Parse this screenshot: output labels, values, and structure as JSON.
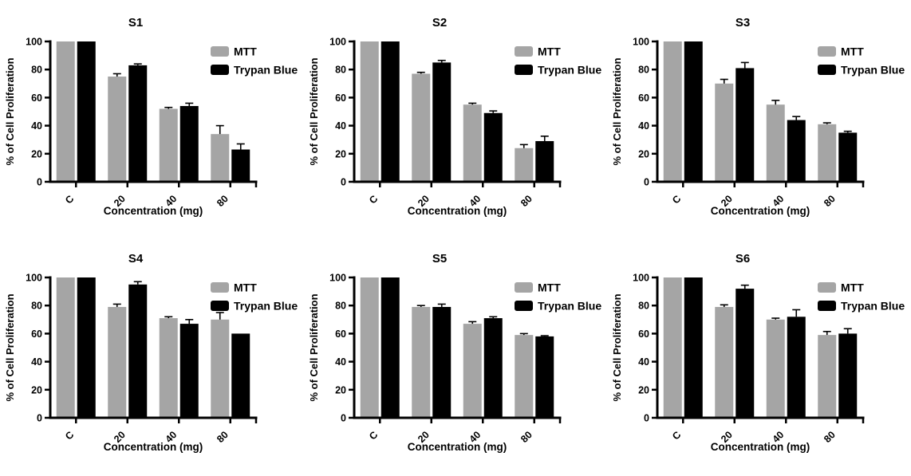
{
  "figure": {
    "background": "#FFFFFF",
    "layout": "2x3-grid"
  },
  "style": {
    "axis_color": "#000000",
    "error_bar_color": "#000000",
    "series_colors": {
      "MTT": "#A5A5A5",
      "Trypan Blue": "#000000"
    }
  },
  "chart_data": [
    {
      "type": "bar",
      "title": "S1",
      "xlabel": "Concentration (mg)",
      "ylabel": "% of Cell Proliferation",
      "ylim": [
        0,
        100
      ],
      "yticks": [
        0,
        20,
        40,
        60,
        80,
        100
      ],
      "categories": [
        "C",
        "20",
        "40",
        "80"
      ],
      "grid": false,
      "legend_position": "top-right",
      "series": [
        {
          "name": "MTT",
          "color": "#A5A5A5",
          "values": [
            100,
            75,
            52,
            34
          ],
          "errors": [
            0,
            2,
            1,
            6
          ]
        },
        {
          "name": "Trypan Blue",
          "color": "#000000",
          "values": [
            100,
            83,
            54,
            23
          ],
          "errors": [
            0,
            1,
            2,
            4
          ]
        }
      ]
    },
    {
      "type": "bar",
      "title": "S2",
      "xlabel": "Concentration (mg)",
      "ylabel": "% of Cell Proliferation",
      "ylim": [
        0,
        100
      ],
      "yticks": [
        0,
        20,
        40,
        60,
        80,
        100
      ],
      "categories": [
        "C",
        "20",
        "40",
        "80"
      ],
      "grid": false,
      "legend_position": "top-right",
      "series": [
        {
          "name": "MTT",
          "color": "#A5A5A5",
          "values": [
            100,
            77,
            55,
            24
          ],
          "errors": [
            0,
            1,
            1,
            2.5
          ]
        },
        {
          "name": "Trypan Blue",
          "color": "#000000",
          "values": [
            100,
            85,
            49,
            29
          ],
          "errors": [
            0,
            1.5,
            1.5,
            3.5
          ]
        }
      ]
    },
    {
      "type": "bar",
      "title": "S3",
      "xlabel": "Concentration (mg)",
      "ylabel": "% of Cell Proliferation",
      "ylim": [
        0,
        100
      ],
      "yticks": [
        0,
        20,
        40,
        60,
        80,
        100
      ],
      "categories": [
        "C",
        "20",
        "40",
        "80"
      ],
      "grid": false,
      "legend_position": "top-right",
      "series": [
        {
          "name": "MTT",
          "color": "#A5A5A5",
          "values": [
            100,
            70,
            55,
            41
          ],
          "errors": [
            0,
            3,
            3,
            1
          ]
        },
        {
          "name": "Trypan Blue",
          "color": "#000000",
          "values": [
            100,
            81,
            44,
            35
          ],
          "errors": [
            0,
            4,
            2.5,
            1
          ]
        }
      ]
    },
    {
      "type": "bar",
      "title": "S4",
      "xlabel": "Concentration (mg)",
      "ylabel": "% of Cell Proliferation",
      "ylim": [
        0,
        100
      ],
      "yticks": [
        0,
        20,
        40,
        60,
        80,
        100
      ],
      "categories": [
        "C",
        "20",
        "40",
        "80"
      ],
      "grid": false,
      "legend_position": "top-right",
      "series": [
        {
          "name": "MTT",
          "color": "#A5A5A5",
          "values": [
            100,
            79,
            71,
            70
          ],
          "errors": [
            0,
            2,
            1,
            5
          ]
        },
        {
          "name": "Trypan Blue",
          "color": "#000000",
          "values": [
            100,
            95,
            67,
            60
          ],
          "errors": [
            0,
            2,
            3,
            0
          ]
        }
      ]
    },
    {
      "type": "bar",
      "title": "S5",
      "xlabel": "Concentration (mg)",
      "ylabel": "% of Cell Proliferation",
      "ylim": [
        0,
        100
      ],
      "yticks": [
        0,
        20,
        40,
        60,
        80,
        100
      ],
      "categories": [
        "C",
        "20",
        "40",
        "80"
      ],
      "grid": false,
      "legend_position": "top-right",
      "series": [
        {
          "name": "MTT",
          "color": "#A5A5A5",
          "values": [
            100,
            79,
            67,
            59
          ],
          "errors": [
            0,
            1,
            1.5,
            1
          ]
        },
        {
          "name": "Trypan Blue",
          "color": "#000000",
          "values": [
            100,
            79,
            71,
            58
          ],
          "errors": [
            0,
            2,
            1,
            0.5
          ]
        }
      ]
    },
    {
      "type": "bar",
      "title": "S6",
      "xlabel": "Concentration (mg)",
      "ylabel": "% of Cell Proliferation",
      "ylim": [
        0,
        100
      ],
      "yticks": [
        0,
        20,
        40,
        60,
        80,
        100
      ],
      "categories": [
        "C",
        "20",
        "40",
        "80"
      ],
      "grid": false,
      "legend_position": "top-right",
      "series": [
        {
          "name": "MTT",
          "color": "#A5A5A5",
          "values": [
            100,
            79,
            70,
            59
          ],
          "errors": [
            0,
            1.5,
            1,
            2.5
          ]
        },
        {
          "name": "Trypan Blue",
          "color": "#000000",
          "values": [
            100,
            92,
            72,
            60
          ],
          "errors": [
            0,
            2.5,
            5,
            3.5
          ]
        }
      ]
    }
  ]
}
